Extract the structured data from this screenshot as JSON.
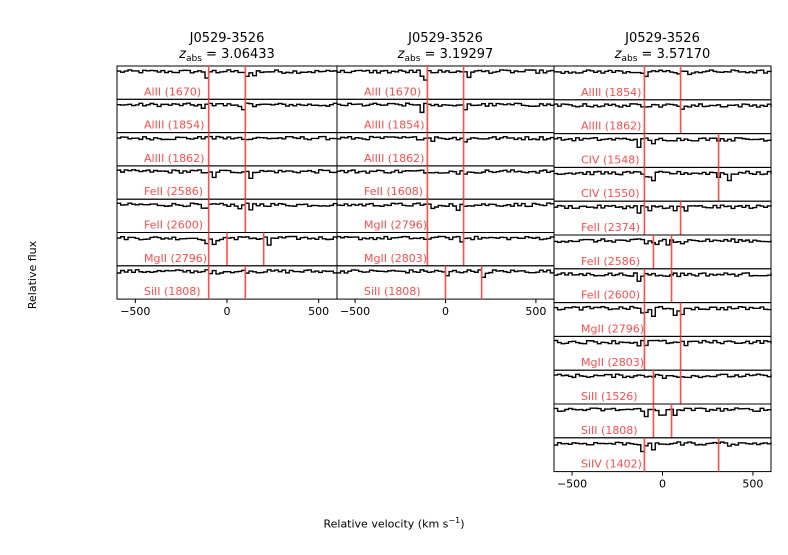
{
  "figure": {
    "ylabel": "Relative flux",
    "xlabel_main": "Relative velocity (km s",
    "xlabel_exp": "−1",
    "xlabel_tail": ")"
  },
  "colors": {
    "line": "#000000",
    "marker": "#ff4d4d",
    "label": "#ff4d4d"
  },
  "chart_data": [
    {
      "type": "line",
      "title_line1": "J0529-3526",
      "title_var": "z",
      "title_sub": "abs",
      "title_value": "= 3.06433",
      "xlim": [
        -600,
        600
      ],
      "xticks": [
        -500,
        0,
        500
      ],
      "xtick_labels": [
        "−500",
        "0",
        "500"
      ],
      "ylim": [
        0,
        1.2
      ],
      "panels": [
        {
          "label": "AlII (1670)",
          "markers": [
            -100,
            100
          ]
        },
        {
          "label": "AlIII (1854)",
          "markers": [
            -100,
            100
          ]
        },
        {
          "label": "AlIII (1862)",
          "markers": [
            -100,
            100
          ]
        },
        {
          "label": "FeII (2586)",
          "markers": [
            -100,
            100
          ]
        },
        {
          "label": "FeII (2600)",
          "markers": [
            -100,
            100
          ]
        },
        {
          "label": "MgII (2796)",
          "markers": [
            -100,
            0,
            200
          ]
        },
        {
          "label": "SiII (1808)",
          "markers": [
            -100,
            100
          ]
        }
      ]
    },
    {
      "type": "line",
      "title_line1": "J0529-3526",
      "title_var": "z",
      "title_sub": "abs",
      "title_value": "= 3.19297",
      "xlim": [
        -600,
        600
      ],
      "xticks": [
        -500,
        0,
        500
      ],
      "xtick_labels": [
        "−500",
        "0",
        "500"
      ],
      "ylim": [
        0,
        1.2
      ],
      "panels": [
        {
          "label": "AlII (1670)",
          "markers": [
            -100,
            100
          ]
        },
        {
          "label": "AlIII (1854)",
          "markers": [
            -100,
            100
          ]
        },
        {
          "label": "AlIII (1862)",
          "markers": [
            -100,
            100
          ]
        },
        {
          "label": "FeII (1608)",
          "markers": [
            -100,
            100
          ]
        },
        {
          "label": "MgII (2796)",
          "markers": [
            -100,
            100
          ]
        },
        {
          "label": "MgII (2803)",
          "markers": [
            -100,
            100
          ]
        },
        {
          "label": "SiII (1808)",
          "markers": [
            0,
            200
          ]
        }
      ]
    },
    {
      "type": "line",
      "title_line1": "J0529-3526",
      "title_var": "z",
      "title_sub": "abs",
      "title_value": "= 3.57170",
      "xlim": [
        -600,
        600
      ],
      "xticks": [
        -500,
        0,
        500
      ],
      "xtick_labels": [
        "−500",
        "0",
        "500"
      ],
      "ylim": [
        0,
        1.2
      ],
      "panels": [
        {
          "label": "AlIII (1854)",
          "markers": [
            -100,
            100
          ]
        },
        {
          "label": "AlIII (1862)",
          "markers": [
            -100,
            100
          ]
        },
        {
          "label": "CIV (1548)",
          "markers": [
            -100,
            310
          ]
        },
        {
          "label": "CIV (1550)",
          "markers": [
            -100,
            310
          ]
        },
        {
          "label": "FeII (2374)",
          "markers": [
            -100,
            100
          ]
        },
        {
          "label": "FeII (2586)",
          "markers": [
            -50,
            50
          ]
        },
        {
          "label": "FeII (2600)",
          "markers": [
            -100,
            50
          ]
        },
        {
          "label": "MgII (2796)",
          "markers": [
            -100,
            100
          ]
        },
        {
          "label": "MgII (2803)",
          "markers": [
            -100,
            100
          ]
        },
        {
          "label": "SiII (1526)",
          "markers": [
            -50,
            100
          ]
        },
        {
          "label": "SiII (1808)",
          "markers": [
            -50,
            50
          ]
        },
        {
          "label": "SiIV (1402)",
          "markers": [
            -100,
            310
          ]
        }
      ]
    }
  ]
}
